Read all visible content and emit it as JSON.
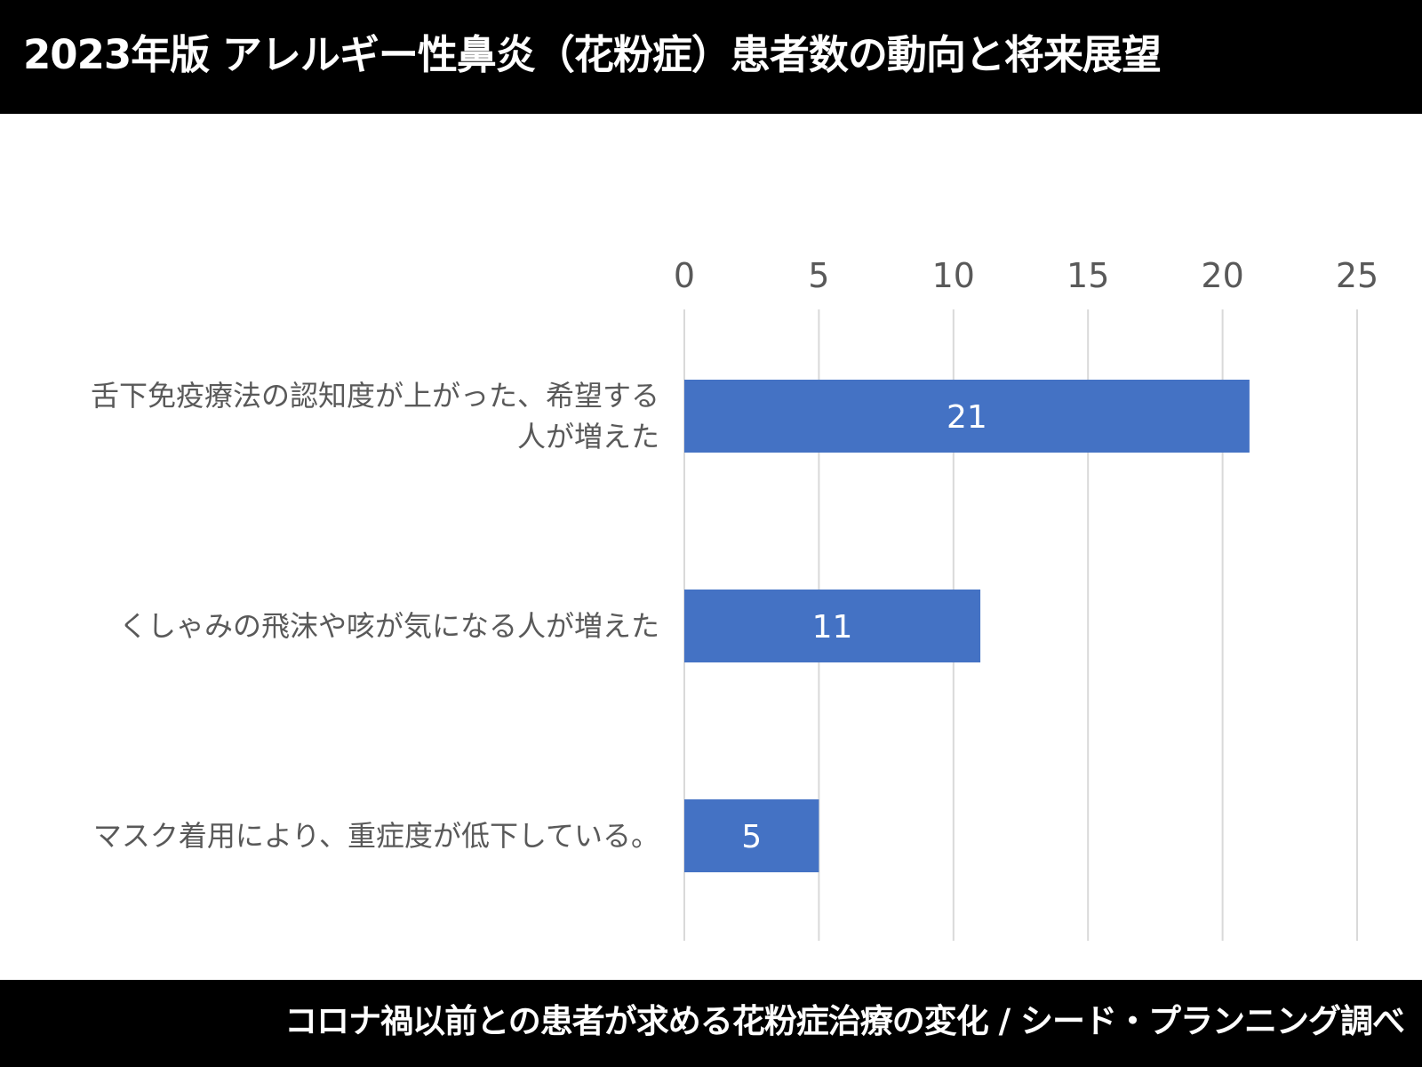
{
  "header": {
    "title": "2023年版 アレルギー性鼻炎（花粉症）患者数の動向と将来展望"
  },
  "footer": {
    "source": "コロナ禍以前との患者が求める花粉症治療の変化 / シード・プランニング調べ"
  },
  "colors": {
    "bar": "#4472c4",
    "gridline": "#d9d9d9",
    "text": "#595959",
    "frame": "#000000"
  },
  "chart_data": {
    "type": "bar",
    "orientation": "horizontal",
    "title": "",
    "xlabel": "",
    "ylabel": "",
    "xlim": [
      0,
      25
    ],
    "x_ticks": [
      0,
      5,
      10,
      15,
      20,
      25
    ],
    "x_axis_position": "top",
    "grid": true,
    "legend": "none",
    "categories": [
      [
        "舌下免疫療法の認知度が上がった、希望する",
        "人が増えた"
      ],
      [
        "くしゃみの飛沫や咳が気になる人が増えた"
      ],
      [
        "マスク着用により、重症度が低下している。"
      ]
    ],
    "values": [
      21,
      11,
      5
    ]
  }
}
